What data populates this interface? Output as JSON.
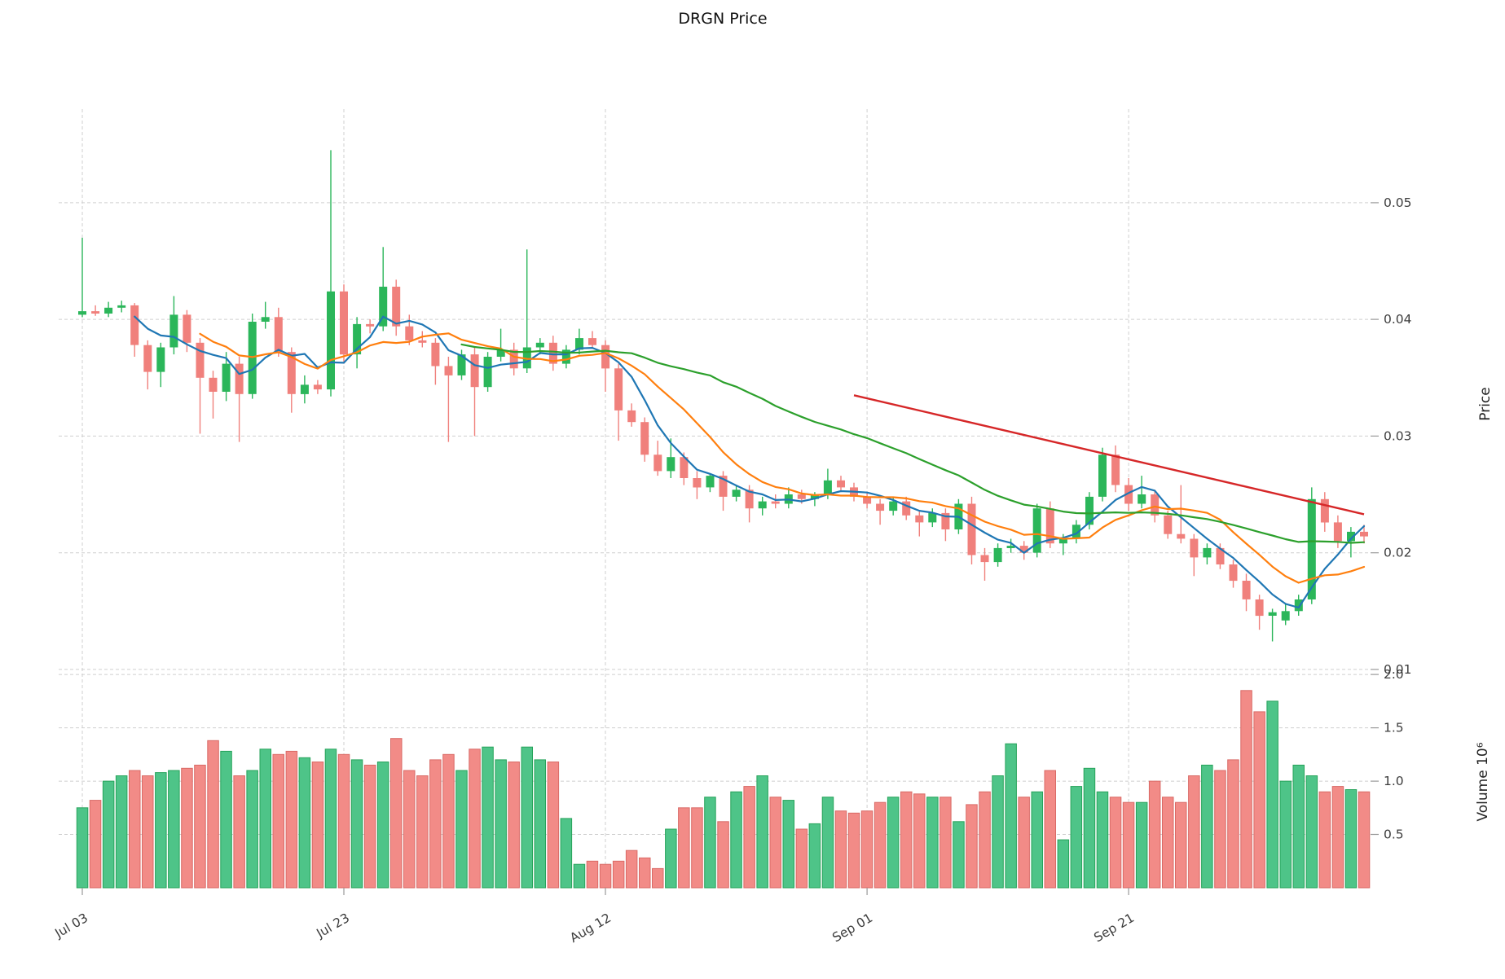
{
  "title": "DRGN Price",
  "axes": {
    "price_label": "Price",
    "volume_label": "Volume 10⁶"
  },
  "colors": {
    "candle_up": "#2bb65a",
    "candle_down": "#f0807c",
    "vol_up": "#4ec488",
    "vol_down": "#f28b87",
    "vol_up_edge": "#26a35a",
    "vol_down_edge": "#d96a66",
    "sma_fast": "#1f77b4",
    "sma_mid": "#ff7f0e",
    "sma_slow": "#2ca02c",
    "trend": "#d62728",
    "grid": "#cfcfcf",
    "tick_text": "#3d3d3d"
  },
  "chart_data": {
    "type": "candlestick",
    "title": "DRGN Price",
    "legend_position": "none",
    "grid": true,
    "x_ticks": [
      {
        "index": 0,
        "label": "Jul 03"
      },
      {
        "index": 20,
        "label": "Jul 23"
      },
      {
        "index": 40,
        "label": "Aug 12"
      },
      {
        "index": 60,
        "label": "Sep 01"
      },
      {
        "index": 80,
        "label": "Sep 21"
      }
    ],
    "price_ticks": [
      0.01,
      0.02,
      0.03,
      0.04,
      0.05
    ],
    "volume_ticks": [
      0.5,
      1.0,
      1.5,
      2.0
    ],
    "price_range": [
      0.0079,
      0.0576
    ],
    "volume_range_millions": [
      0,
      2.23
    ],
    "open": [
      0.0404,
      0.0407,
      0.0405,
      0.041,
      0.0412,
      0.0378,
      0.0355,
      0.0376,
      0.0404,
      0.038,
      0.035,
      0.0338,
      0.0362,
      0.0336,
      0.0398,
      0.0402,
      0.0372,
      0.0336,
      0.0344,
      0.034,
      0.0424,
      0.037,
      0.0396,
      0.0394,
      0.0428,
      0.0394,
      0.0382,
      0.038,
      0.036,
      0.0352,
      0.037,
      0.0342,
      0.0368,
      0.0374,
      0.0358,
      0.0376,
      0.038,
      0.0362,
      0.0374,
      0.0384,
      0.0378,
      0.0358,
      0.0322,
      0.0312,
      0.0284,
      0.027,
      0.0282,
      0.0264,
      0.0256,
      0.0266,
      0.0248,
      0.0254,
      0.0238,
      0.0244,
      0.0242,
      0.025,
      0.0246,
      0.025,
      0.0262,
      0.0256,
      0.0248,
      0.0242,
      0.0236,
      0.0244,
      0.0232,
      0.0226,
      0.0234,
      0.022,
      0.0242,
      0.0198,
      0.0192,
      0.0204,
      0.0206,
      0.02,
      0.0238,
      0.0208,
      0.0212,
      0.0224,
      0.0248,
      0.0284,
      0.0258,
      0.0242,
      0.025,
      0.0232,
      0.0216,
      0.0212,
      0.0196,
      0.0204,
      0.019,
      0.0176,
      0.016,
      0.0146,
      0.0142,
      0.015,
      0.016,
      0.0246,
      0.0226,
      0.021,
      0.0218
    ],
    "high": [
      0.047,
      0.0412,
      0.0415,
      0.0416,
      0.0414,
      0.0382,
      0.038,
      0.042,
      0.0408,
      0.0384,
      0.0356,
      0.0372,
      0.0368,
      0.0405,
      0.0415,
      0.041,
      0.0376,
      0.0352,
      0.0348,
      0.0545,
      0.043,
      0.0402,
      0.04,
      0.0462,
      0.0434,
      0.0404,
      0.039,
      0.0384,
      0.0368,
      0.0374,
      0.0376,
      0.0372,
      0.0392,
      0.038,
      0.046,
      0.0384,
      0.0386,
      0.0378,
      0.0392,
      0.039,
      0.0382,
      0.0362,
      0.0328,
      0.0316,
      0.0296,
      0.0298,
      0.0286,
      0.027,
      0.0268,
      0.027,
      0.0258,
      0.0258,
      0.0248,
      0.025,
      0.0256,
      0.0254,
      0.0252,
      0.0272,
      0.0266,
      0.026,
      0.0252,
      0.0246,
      0.0248,
      0.0248,
      0.0236,
      0.0238,
      0.0238,
      0.0246,
      0.0248,
      0.0204,
      0.0208,
      0.0212,
      0.021,
      0.0242,
      0.0244,
      0.0216,
      0.0228,
      0.0252,
      0.029,
      0.0292,
      0.0264,
      0.0266,
      0.0254,
      0.0236,
      0.0258,
      0.0216,
      0.0208,
      0.0208,
      0.0194,
      0.0182,
      0.0164,
      0.0152,
      0.0156,
      0.0164,
      0.0256,
      0.0252,
      0.0232,
      0.0222,
      0.0224
    ],
    "low": [
      0.0402,
      0.0403,
      0.0402,
      0.0406,
      0.0368,
      0.034,
      0.0342,
      0.037,
      0.0372,
      0.0302,
      0.0315,
      0.033,
      0.0295,
      0.0332,
      0.0392,
      0.0368,
      0.032,
      0.0328,
      0.0336,
      0.0334,
      0.0362,
      0.0358,
      0.0388,
      0.039,
      0.0386,
      0.0378,
      0.0376,
      0.0344,
      0.0295,
      0.0348,
      0.03,
      0.0338,
      0.0364,
      0.0352,
      0.0354,
      0.037,
      0.0356,
      0.0358,
      0.037,
      0.0376,
      0.0338,
      0.0296,
      0.0308,
      0.0278,
      0.0266,
      0.0264,
      0.0258,
      0.0246,
      0.0252,
      0.0236,
      0.0244,
      0.0226,
      0.0232,
      0.0238,
      0.0238,
      0.0242,
      0.024,
      0.0246,
      0.0252,
      0.0244,
      0.0238,
      0.0224,
      0.0232,
      0.0228,
      0.0214,
      0.0222,
      0.021,
      0.0216,
      0.019,
      0.0176,
      0.0188,
      0.02,
      0.0194,
      0.0196,
      0.0204,
      0.0198,
      0.0208,
      0.022,
      0.0244,
      0.0252,
      0.0236,
      0.0238,
      0.0226,
      0.0212,
      0.0208,
      0.018,
      0.019,
      0.0186,
      0.017,
      0.015,
      0.0134,
      0.0124,
      0.0138,
      0.0146,
      0.0156,
      0.0218,
      0.0204,
      0.0196,
      0.0208
    ],
    "close": [
      0.0407,
      0.0405,
      0.041,
      0.0412,
      0.0378,
      0.0355,
      0.0376,
      0.0404,
      0.038,
      0.035,
      0.0338,
      0.0362,
      0.0336,
      0.0398,
      0.0402,
      0.0372,
      0.0336,
      0.0344,
      0.034,
      0.0424,
      0.037,
      0.0396,
      0.0394,
      0.0428,
      0.0394,
      0.0382,
      0.038,
      0.036,
      0.0352,
      0.037,
      0.0342,
      0.0368,
      0.0374,
      0.0358,
      0.0376,
      0.038,
      0.0362,
      0.0374,
      0.0384,
      0.0378,
      0.0358,
      0.0322,
      0.0312,
      0.0284,
      0.027,
      0.0282,
      0.0264,
      0.0256,
      0.0266,
      0.0248,
      0.0254,
      0.0238,
      0.0244,
      0.0242,
      0.025,
      0.0246,
      0.025,
      0.0262,
      0.0256,
      0.0248,
      0.0242,
      0.0236,
      0.0244,
      0.0232,
      0.0226,
      0.0234,
      0.022,
      0.0242,
      0.0198,
      0.0192,
      0.0204,
      0.0206,
      0.02,
      0.0238,
      0.0208,
      0.0212,
      0.0224,
      0.0248,
      0.0284,
      0.0258,
      0.0242,
      0.025,
      0.0232,
      0.0216,
      0.0212,
      0.0196,
      0.0204,
      0.019,
      0.0176,
      0.016,
      0.0146,
      0.0149,
      0.015,
      0.016,
      0.0246,
      0.0226,
      0.021,
      0.0218,
      0.0214
    ],
    "volume_millions": [
      0.75,
      0.82,
      1.0,
      1.05,
      1.1,
      1.05,
      1.08,
      1.1,
      1.12,
      1.15,
      1.38,
      1.28,
      1.05,
      1.1,
      1.3,
      1.25,
      1.28,
      1.22,
      1.18,
      1.3,
      1.25,
      1.2,
      1.15,
      1.18,
      1.4,
      1.1,
      1.05,
      1.2,
      1.25,
      1.1,
      1.3,
      1.32,
      1.2,
      1.18,
      1.32,
      1.2,
      1.18,
      0.65,
      0.22,
      0.25,
      0.22,
      0.25,
      0.35,
      0.28,
      0.18,
      0.55,
      0.75,
      0.75,
      0.85,
      0.62,
      0.9,
      0.95,
      1.05,
      0.85,
      0.82,
      0.55,
      0.6,
      0.85,
      0.72,
      0.7,
      0.72,
      0.8,
      0.85,
      0.9,
      0.88,
      0.85,
      0.85,
      0.62,
      0.78,
      0.9,
      1.05,
      1.35,
      0.85,
      0.9,
      1.1,
      0.45,
      0.95,
      1.12,
      0.9,
      0.85,
      0.8,
      0.8,
      1.0,
      0.85,
      0.8,
      1.05,
      1.15,
      1.1,
      1.2,
      1.85,
      1.65,
      1.75,
      1.0,
      1.15,
      1.05,
      0.9,
      0.95,
      0.92,
      0.9
    ],
    "overlays": [
      {
        "name": "sma-fast",
        "type": "sma",
        "window": 5,
        "color": "#1f77b4"
      },
      {
        "name": "sma-mid",
        "type": "sma",
        "window": 10,
        "color": "#ff7f0e"
      },
      {
        "name": "sma-slow",
        "type": "sma",
        "window": 30,
        "color": "#2ca02c"
      },
      {
        "name": "resistance-trendline",
        "type": "segment",
        "from": {
          "index": 59,
          "price": 0.0335
        },
        "to": {
          "index": 98,
          "price": 0.0233
        },
        "color": "#d62728"
      }
    ]
  }
}
